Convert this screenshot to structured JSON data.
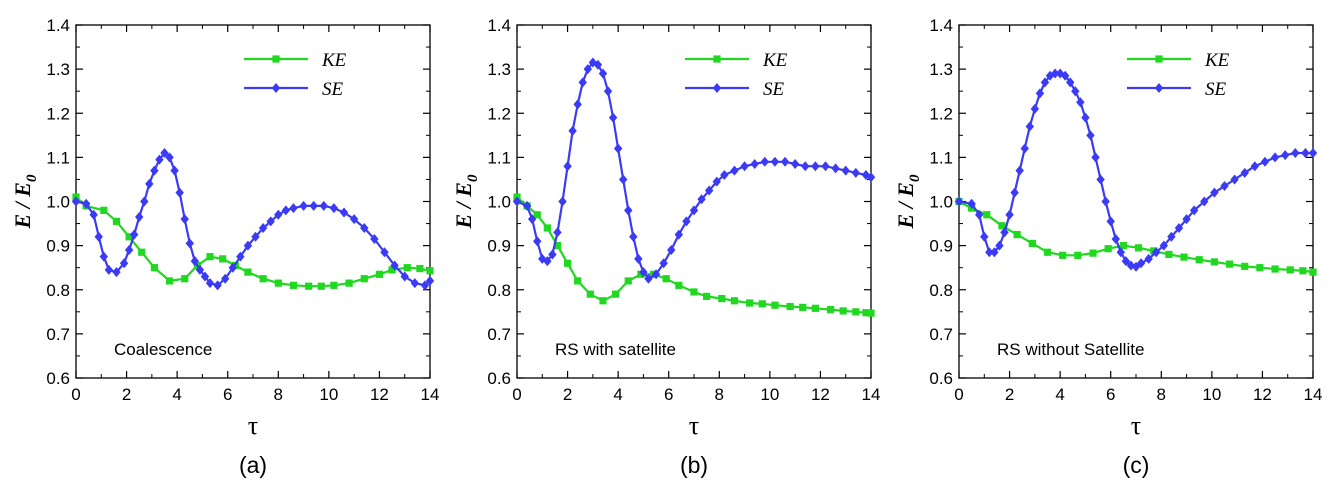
{
  "colors": {
    "ke": "#1fd81f",
    "se": "#3b3bf5",
    "axis": "#000000"
  },
  "chart_data": [
    {
      "type": "line",
      "panel_label": "(a)",
      "annotation": "Coalescence",
      "xlabel": "τ",
      "ylabel": "E / E",
      "ylabel_sub": "0",
      "xlim": [
        0,
        14
      ],
      "ylim": [
        0.6,
        1.4
      ],
      "xticks": [
        "0",
        "2",
        "4",
        "6",
        "8",
        "10",
        "12",
        "14"
      ],
      "yticks": [
        "0.6",
        "0.7",
        "0.8",
        "0.9",
        "1.0",
        "1.1",
        "1.2",
        "1.3",
        "1.4"
      ],
      "series": [
        {
          "name": "KE",
          "marker": "square",
          "x": [
            0,
            0.4,
            1.1,
            1.6,
            2.1,
            2.6,
            3.1,
            3.7,
            4.3,
            4.8,
            5.3,
            5.8,
            6.3,
            6.8,
            7.4,
            8.0,
            8.6,
            9.2,
            9.7,
            10.2,
            10.8,
            11.4,
            12.0,
            12.5,
            13.1,
            13.6,
            14.0
          ],
          "y": [
            1.01,
            0.99,
            0.98,
            0.955,
            0.92,
            0.885,
            0.85,
            0.82,
            0.825,
            0.855,
            0.875,
            0.87,
            0.855,
            0.84,
            0.825,
            0.815,
            0.81,
            0.808,
            0.808,
            0.81,
            0.815,
            0.825,
            0.835,
            0.845,
            0.85,
            0.848,
            0.843
          ]
        },
        {
          "name": "SE",
          "marker": "diamond",
          "x": [
            0,
            0.4,
            0.7,
            0.9,
            1.1,
            1.3,
            1.6,
            1.9,
            2.1,
            2.3,
            2.5,
            2.7,
            2.9,
            3.1,
            3.3,
            3.5,
            3.7,
            3.9,
            4.1,
            4.3,
            4.5,
            4.7,
            4.9,
            5.1,
            5.3,
            5.6,
            5.9,
            6.2,
            6.5,
            6.8,
            7.1,
            7.4,
            7.7,
            8.0,
            8.3,
            8.6,
            9.0,
            9.4,
            9.8,
            10.2,
            10.6,
            11.0,
            11.4,
            11.8,
            12.2,
            12.6,
            13.0,
            13.4,
            13.8,
            14.0
          ],
          "y": [
            1.0,
            0.995,
            0.97,
            0.92,
            0.875,
            0.845,
            0.84,
            0.86,
            0.89,
            0.925,
            0.965,
            1.0,
            1.04,
            1.07,
            1.095,
            1.11,
            1.1,
            1.07,
            1.02,
            0.96,
            0.905,
            0.865,
            0.845,
            0.83,
            0.815,
            0.81,
            0.825,
            0.85,
            0.875,
            0.9,
            0.92,
            0.94,
            0.955,
            0.97,
            0.98,
            0.985,
            0.99,
            0.99,
            0.99,
            0.985,
            0.975,
            0.96,
            0.94,
            0.915,
            0.885,
            0.855,
            0.83,
            0.815,
            0.81,
            0.82
          ]
        }
      ]
    },
    {
      "type": "line",
      "panel_label": "(b)",
      "annotation": "RS with satellite",
      "xlabel": "τ",
      "ylabel": "E / E",
      "ylabel_sub": "0",
      "xlim": [
        0,
        14
      ],
      "ylim": [
        0.6,
        1.4
      ],
      "xticks": [
        "0",
        "2",
        "4",
        "6",
        "8",
        "10",
        "12",
        "14"
      ],
      "yticks": [
        "0.6",
        "0.7",
        "0.8",
        "0.9",
        "1.0",
        "1.1",
        "1.2",
        "1.3",
        "1.4"
      ],
      "series": [
        {
          "name": "KE",
          "marker": "square",
          "x": [
            0,
            0.4,
            0.8,
            1.2,
            1.6,
            2.0,
            2.4,
            2.9,
            3.4,
            3.9,
            4.4,
            4.9,
            5.4,
            5.9,
            6.4,
            7.0,
            7.5,
            8.1,
            8.6,
            9.2,
            9.7,
            10.2,
            10.8,
            11.3,
            11.8,
            12.4,
            12.9,
            13.4,
            13.8,
            14.0
          ],
          "y": [
            1.01,
            0.99,
            0.97,
            0.94,
            0.9,
            0.86,
            0.82,
            0.79,
            0.775,
            0.79,
            0.82,
            0.835,
            0.835,
            0.825,
            0.81,
            0.795,
            0.785,
            0.78,
            0.775,
            0.77,
            0.768,
            0.765,
            0.762,
            0.76,
            0.758,
            0.755,
            0.752,
            0.75,
            0.748,
            0.747
          ]
        },
        {
          "name": "SE",
          "marker": "diamond",
          "x": [
            0,
            0.4,
            0.6,
            0.8,
            1.0,
            1.2,
            1.4,
            1.6,
            1.8,
            2.0,
            2.2,
            2.4,
            2.6,
            2.8,
            3.0,
            3.2,
            3.4,
            3.6,
            3.8,
            4.0,
            4.2,
            4.4,
            4.6,
            4.8,
            5.0,
            5.2,
            5.5,
            5.8,
            6.1,
            6.4,
            6.7,
            7.0,
            7.3,
            7.6,
            7.9,
            8.2,
            8.6,
            9.0,
            9.4,
            9.8,
            10.2,
            10.6,
            11.0,
            11.4,
            11.8,
            12.2,
            12.6,
            13.0,
            13.4,
            13.8,
            14.0
          ],
          "y": [
            1.0,
            0.99,
            0.96,
            0.91,
            0.87,
            0.865,
            0.88,
            0.93,
            1.0,
            1.08,
            1.16,
            1.22,
            1.27,
            1.3,
            1.315,
            1.31,
            1.29,
            1.25,
            1.19,
            1.12,
            1.05,
            0.98,
            0.92,
            0.87,
            0.84,
            0.825,
            0.835,
            0.86,
            0.89,
            0.925,
            0.955,
            0.98,
            1.005,
            1.025,
            1.045,
            1.06,
            1.07,
            1.08,
            1.085,
            1.09,
            1.09,
            1.09,
            1.085,
            1.08,
            1.08,
            1.08,
            1.075,
            1.07,
            1.065,
            1.06,
            1.055
          ]
        }
      ]
    },
    {
      "type": "line",
      "panel_label": "(c)",
      "annotation": "RS without Satellite",
      "xlabel": "τ",
      "ylabel": "E / E",
      "ylabel_sub": "0",
      "xlim": [
        0,
        14
      ],
      "ylim": [
        0.6,
        1.4
      ],
      "xticks": [
        "0",
        "2",
        "4",
        "6",
        "8",
        "10",
        "12",
        "14"
      ],
      "yticks": [
        "0.6",
        "0.7",
        "0.8",
        "0.9",
        "1.0",
        "1.1",
        "1.2",
        "1.3",
        "1.4"
      ],
      "series": [
        {
          "name": "KE",
          "marker": "square",
          "x": [
            0,
            0.5,
            1.1,
            1.7,
            2.3,
            2.9,
            3.5,
            4.1,
            4.7,
            5.3,
            5.9,
            6.5,
            7.1,
            7.7,
            8.3,
            8.9,
            9.5,
            10.1,
            10.7,
            11.3,
            11.9,
            12.5,
            13.1,
            13.6,
            14.0
          ],
          "y": [
            1.0,
            0.985,
            0.97,
            0.945,
            0.925,
            0.905,
            0.885,
            0.878,
            0.878,
            0.883,
            0.893,
            0.9,
            0.895,
            0.888,
            0.88,
            0.874,
            0.868,
            0.863,
            0.858,
            0.853,
            0.85,
            0.847,
            0.845,
            0.843,
            0.84
          ]
        },
        {
          "name": "SE",
          "marker": "diamond",
          "x": [
            0,
            0.5,
            0.8,
            1.0,
            1.2,
            1.4,
            1.6,
            1.8,
            2.0,
            2.2,
            2.4,
            2.6,
            2.8,
            3.0,
            3.2,
            3.4,
            3.6,
            3.8,
            4.0,
            4.2,
            4.4,
            4.6,
            4.8,
            5.0,
            5.2,
            5.4,
            5.6,
            5.8,
            6.0,
            6.2,
            6.4,
            6.6,
            6.8,
            7.0,
            7.2,
            7.5,
            7.8,
            8.1,
            8.4,
            8.7,
            9.0,
            9.3,
            9.7,
            10.1,
            10.5,
            10.9,
            11.3,
            11.7,
            12.1,
            12.5,
            12.9,
            13.3,
            13.7,
            14.0
          ],
          "y": [
            1.0,
            0.995,
            0.97,
            0.92,
            0.885,
            0.885,
            0.9,
            0.93,
            0.97,
            1.02,
            1.07,
            1.12,
            1.17,
            1.21,
            1.245,
            1.27,
            1.285,
            1.29,
            1.29,
            1.285,
            1.27,
            1.25,
            1.225,
            1.19,
            1.15,
            1.1,
            1.05,
            1.0,
            0.955,
            0.915,
            0.885,
            0.865,
            0.855,
            0.852,
            0.86,
            0.87,
            0.885,
            0.9,
            0.92,
            0.94,
            0.96,
            0.98,
            1.0,
            1.02,
            1.035,
            1.05,
            1.065,
            1.08,
            1.09,
            1.1,
            1.105,
            1.11,
            1.11,
            1.11
          ]
        }
      ]
    }
  ]
}
